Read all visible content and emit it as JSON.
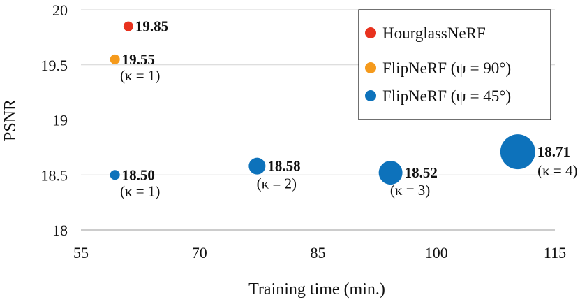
{
  "chart_data": {
    "type": "scatter",
    "xlabel": "Training time (min.)",
    "ylabel": "PSNR",
    "xlim": [
      55,
      115
    ],
    "ylim": [
      18,
      20
    ],
    "xticks": [
      "55",
      "70",
      "85",
      "100",
      "115"
    ],
    "yticks": [
      "18",
      "18.5",
      "19",
      "19.5",
      "20"
    ],
    "grid": "horizontal",
    "legend_position": "top-right",
    "colors": {
      "HourglassNeRF": "#e8321e",
      "FlipNeRF (ψ = 90°)": "#f59a1c",
      "FlipNeRF (ψ = 45°)": "#0d72bb"
    },
    "series": [
      {
        "name": "HourglassNeRF",
        "points": [
          {
            "x": 61.0,
            "y": 19.85,
            "label": "19.85",
            "note": ""
          }
        ]
      },
      {
        "name": "FlipNeRF (ψ = 90°)",
        "points": [
          {
            "x": 59.3,
            "y": 19.55,
            "label": "19.55",
            "note": "(κ = 1)"
          }
        ]
      },
      {
        "name": "FlipNeRF (ψ = 45°)",
        "points": [
          {
            "x": 59.3,
            "y": 18.5,
            "label": "18.50",
            "note": "(κ = 1)",
            "kappa": 1
          },
          {
            "x": 77.3,
            "y": 18.58,
            "label": "18.58",
            "note": "(κ = 2)",
            "kappa": 2
          },
          {
            "x": 94.2,
            "y": 18.52,
            "label": "18.52",
            "note": "(κ = 3)",
            "kappa": 3
          },
          {
            "x": 110.3,
            "y": 18.71,
            "label": "18.71",
            "note": "(κ = 4)",
            "kappa": 4
          }
        ]
      }
    ]
  }
}
